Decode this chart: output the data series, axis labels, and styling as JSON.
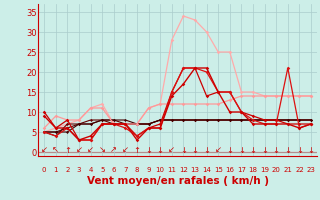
{
  "xlabel": "Vent moyen/en rafales ( km/h )",
  "background_color": "#cceee8",
  "grid_color": "#aacccc",
  "x_ticks": [
    0,
    1,
    2,
    3,
    4,
    5,
    6,
    7,
    8,
    9,
    10,
    11,
    12,
    13,
    14,
    15,
    16,
    17,
    18,
    19,
    20,
    21,
    22,
    23
  ],
  "y_ticks": [
    0,
    5,
    10,
    15,
    20,
    25,
    30,
    35
  ],
  "ylim": [
    -1,
    37
  ],
  "xlim": [
    -0.5,
    23.5
  ],
  "lines": [
    {
      "x": [
        0,
        1,
        2,
        3,
        4,
        5,
        6,
        7,
        8,
        9,
        10,
        11,
        12,
        13,
        14,
        15,
        16,
        17,
        18,
        19,
        20,
        21,
        22,
        23
      ],
      "y": [
        5,
        6,
        7,
        8,
        11,
        12,
        7,
        7,
        7,
        11,
        12,
        28,
        34,
        33,
        30,
        25,
        25,
        15,
        15,
        14,
        14,
        14,
        14,
        14
      ],
      "color": "#ffaaaa",
      "marker": "D",
      "markersize": 1.8,
      "linewidth": 0.9,
      "zorder": 2
    },
    {
      "x": [
        0,
        1,
        2,
        3,
        4,
        5,
        6,
        7,
        8,
        9,
        10,
        11,
        12,
        13,
        14,
        15,
        16,
        17,
        18,
        19,
        20,
        21,
        22,
        23
      ],
      "y": [
        6,
        9,
        8,
        8,
        11,
        11,
        7,
        7,
        7,
        11,
        12,
        12,
        12,
        12,
        12,
        12,
        13,
        14,
        14,
        14,
        14,
        14,
        14,
        14
      ],
      "color": "#ff9999",
      "marker": "D",
      "markersize": 1.8,
      "linewidth": 0.9,
      "zorder": 3
    },
    {
      "x": [
        0,
        1,
        2,
        3,
        4,
        5,
        6,
        7,
        8,
        9,
        10,
        11,
        12,
        13,
        14,
        15,
        16,
        17,
        18,
        19,
        20,
        21,
        22,
        23
      ],
      "y": [
        9,
        6,
        6,
        3,
        4,
        7,
        7,
        7,
        3,
        6,
        6,
        14,
        17,
        21,
        21,
        15,
        10,
        10,
        7,
        7,
        7,
        7,
        6,
        7
      ],
      "color": "#cc0000",
      "marker": "D",
      "markersize": 1.8,
      "linewidth": 1.0,
      "zorder": 5
    },
    {
      "x": [
        0,
        1,
        2,
        3,
        4,
        5,
        6,
        7,
        8,
        9,
        10,
        11,
        12,
        13,
        14,
        15,
        16,
        17,
        18,
        19,
        20,
        21,
        22,
        23
      ],
      "y": [
        5,
        4,
        6,
        3,
        3,
        7,
        7,
        6,
        4,
        6,
        6,
        15,
        21,
        21,
        20,
        15,
        15,
        10,
        8,
        7,
        7,
        21,
        6,
        7
      ],
      "color": "#dd1111",
      "marker": "D",
      "markersize": 1.8,
      "linewidth": 0.9,
      "zorder": 4
    },
    {
      "x": [
        0,
        1,
        2,
        3,
        4,
        5,
        6,
        7,
        8,
        9,
        10,
        11,
        12,
        13,
        14,
        15,
        16,
        17,
        18,
        19,
        20,
        21,
        22,
        23
      ],
      "y": [
        10,
        6,
        8,
        3,
        3,
        7,
        7,
        7,
        4,
        6,
        7,
        15,
        21,
        21,
        14,
        15,
        15,
        10,
        9,
        8,
        8,
        7,
        7,
        7
      ],
      "color": "#cc0000",
      "marker": "D",
      "markersize": 1.8,
      "linewidth": 0.9,
      "zorder": 3
    },
    {
      "x": [
        0,
        1,
        2,
        3,
        4,
        5,
        6,
        7,
        8,
        9,
        10,
        11,
        12,
        13,
        14,
        15,
        16,
        17,
        18,
        19,
        20,
        21,
        22,
        23
      ],
      "y": [
        5,
        4,
        7,
        7,
        8,
        8,
        7,
        7,
        7,
        7,
        8,
        8,
        8,
        8,
        8,
        8,
        8,
        8,
        8,
        8,
        8,
        8,
        8,
        8
      ],
      "color": "#660000",
      "marker": "D",
      "markersize": 1.5,
      "linewidth": 0.8,
      "zorder": 2
    },
    {
      "x": [
        0,
        1,
        2,
        3,
        4,
        5,
        6,
        7,
        8,
        9,
        10,
        11,
        12,
        13,
        14,
        15,
        16,
        17,
        18,
        19,
        20,
        21,
        22,
        23
      ],
      "y": [
        5,
        5,
        6,
        7,
        7,
        8,
        8,
        7,
        7,
        7,
        8,
        8,
        8,
        8,
        8,
        8,
        8,
        8,
        8,
        8,
        8,
        8,
        8,
        8
      ],
      "color": "#550000",
      "marker": "D",
      "markersize": 1.5,
      "linewidth": 0.8,
      "zorder": 2
    },
    {
      "x": [
        0,
        1,
        2,
        3,
        4,
        5,
        6,
        7,
        8,
        9,
        10,
        11,
        12,
        13,
        14,
        15,
        16,
        17,
        18,
        19,
        20,
        21,
        22,
        23
      ],
      "y": [
        5,
        5,
        5,
        7,
        7,
        8,
        8,
        8,
        7,
        7,
        8,
        8,
        8,
        8,
        8,
        8,
        8,
        8,
        8,
        8,
        8,
        8,
        8,
        8
      ],
      "color": "#440000",
      "marker": "D",
      "markersize": 1.5,
      "linewidth": 0.8,
      "zorder": 2
    }
  ],
  "arrow_symbols": [
    "↙",
    "↖",
    "↑",
    "↙",
    "↙",
    "↘",
    "↗",
    "↙",
    "↑",
    "↓",
    "↓",
    "↙",
    "↓",
    "↓",
    "↓",
    "↙",
    "↓",
    "↓",
    "↓",
    "↓",
    "↓",
    "↓",
    "↓",
    "↓"
  ],
  "xlabel_color": "#cc0000",
  "xlabel_fontsize": 7.5,
  "tick_color": "#cc0000",
  "y_tick_fontsize": 6,
  "x_tick_fontsize": 5,
  "arrow_fontsize": 6,
  "arrow_color": "#cc0000"
}
